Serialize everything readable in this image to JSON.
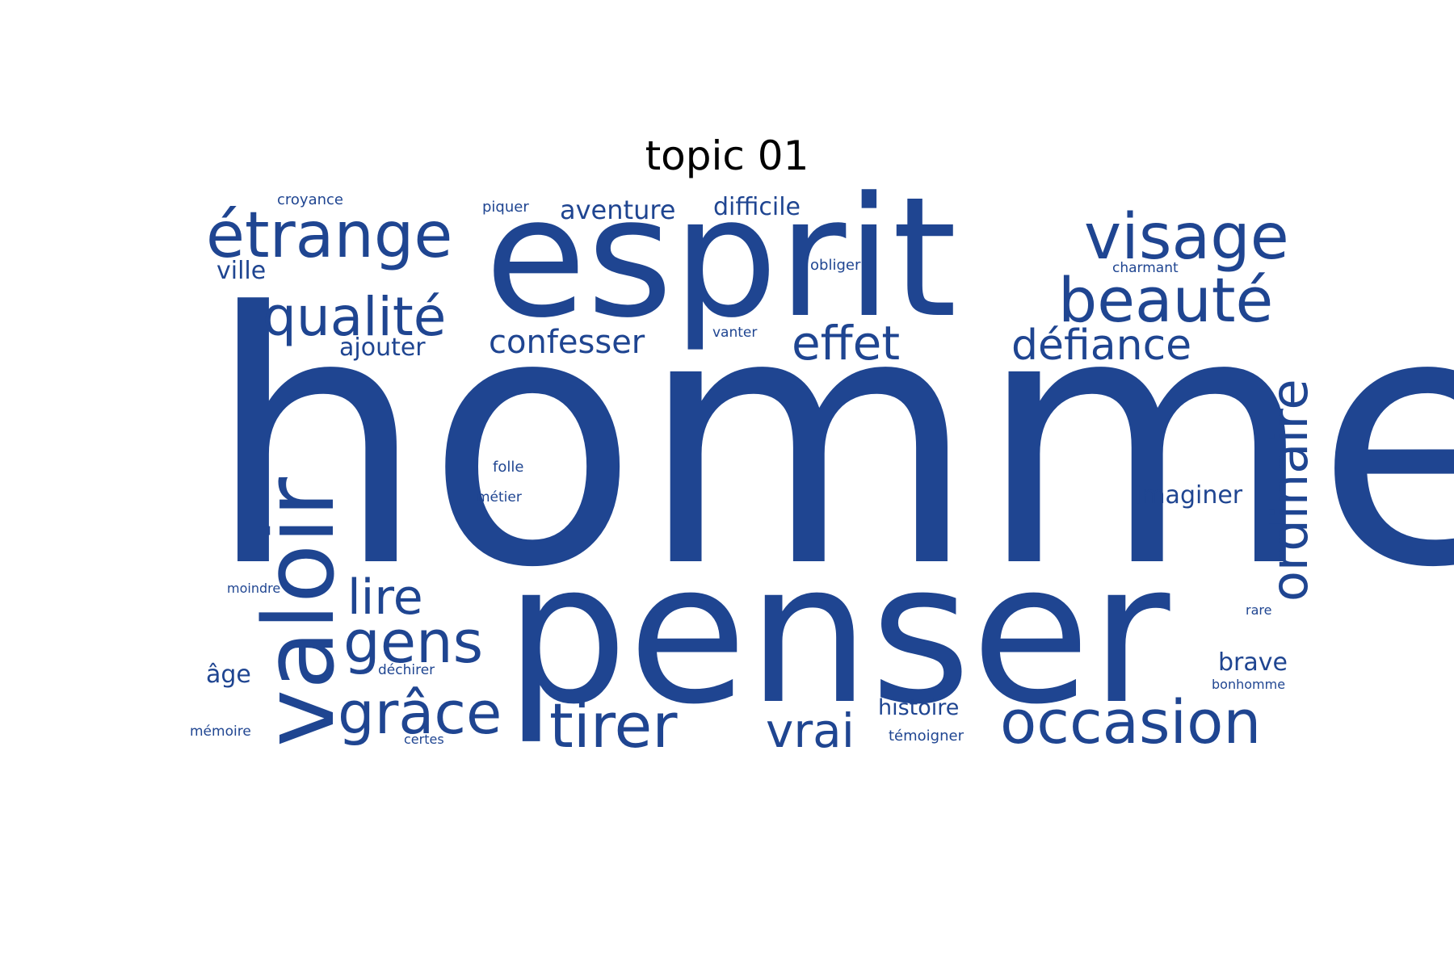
{
  "title": "topic 01",
  "color": "#1f4591",
  "words": [
    {
      "text": "homme",
      "weight": 1.0
    },
    {
      "text": "penser",
      "weight": 0.62
    },
    {
      "text": "esprit",
      "weight": 0.55
    },
    {
      "text": "valoir",
      "weight": 0.3
    },
    {
      "text": "étrange",
      "weight": 0.22
    },
    {
      "text": "visage",
      "weight": 0.22
    },
    {
      "text": "beauté",
      "weight": 0.21
    },
    {
      "text": "occasion",
      "weight": 0.21
    },
    {
      "text": "ordinaire",
      "weight": 0.19
    },
    {
      "text": "qualité",
      "weight": 0.19
    },
    {
      "text": "gens",
      "weight": 0.2
    },
    {
      "text": "grâce",
      "weight": 0.2
    },
    {
      "text": "tirer",
      "weight": 0.22
    },
    {
      "text": "lire",
      "weight": 0.18
    },
    {
      "text": "effet",
      "weight": 0.17
    },
    {
      "text": "vrai",
      "weight": 0.17
    },
    {
      "text": "défiance",
      "weight": 0.15
    },
    {
      "text": "confesser",
      "weight": 0.11
    },
    {
      "text": "aventure",
      "weight": 0.09
    },
    {
      "text": "difficile",
      "weight": 0.08
    },
    {
      "text": "ajouter",
      "weight": 0.08
    },
    {
      "text": "ville",
      "weight": 0.08
    },
    {
      "text": "imaginer",
      "weight": 0.08
    },
    {
      "text": "brave",
      "weight": 0.08
    },
    {
      "text": "âge",
      "weight": 0.08
    },
    {
      "text": "histoire",
      "weight": 0.07
    },
    {
      "text": "piquer",
      "weight": 0.05
    },
    {
      "text": "croyance",
      "weight": 0.05
    },
    {
      "text": "obliger",
      "weight": 0.05
    },
    {
      "text": "charmant",
      "weight": 0.05
    },
    {
      "text": "vanter",
      "weight": 0.05
    },
    {
      "text": "folle",
      "weight": 0.05
    },
    {
      "text": "métier",
      "weight": 0.05
    },
    {
      "text": "moindre",
      "weight": 0.05
    },
    {
      "text": "rare",
      "weight": 0.05
    },
    {
      "text": "déchirer",
      "weight": 0.05
    },
    {
      "text": "bonhomme",
      "weight": 0.05
    },
    {
      "text": "mémoire",
      "weight": 0.05
    },
    {
      "text": "certes",
      "weight": 0.05
    },
    {
      "text": "témoigner",
      "weight": 0.05
    }
  ]
}
